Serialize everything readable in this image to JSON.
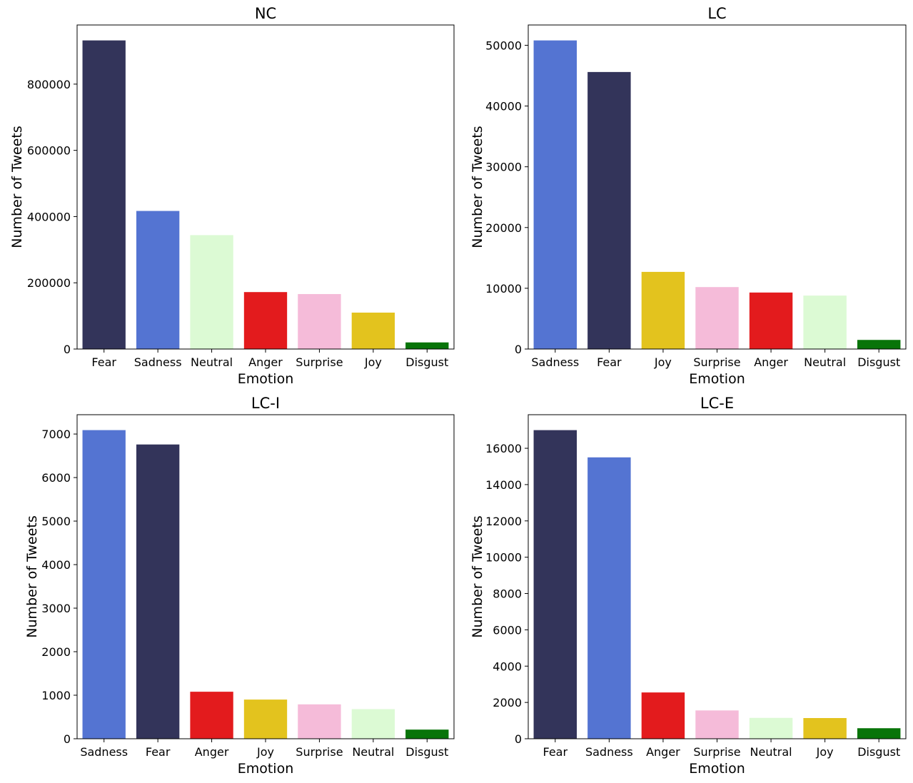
{
  "chart_data": [
    {
      "type": "bar",
      "title": "NC",
      "xlabel": "Emotion",
      "ylabel": "Number of Tweets",
      "categories": [
        "Fear",
        "Sadness",
        "Neutral",
        "Anger",
        "Surprise",
        "Joy",
        "Disgust"
      ],
      "values": [
        932000,
        417000,
        344000,
        172000,
        166000,
        110000,
        20000
      ],
      "colors": [
        "#33345a",
        "#5474d2",
        "#dcfad4",
        "#e31b1d",
        "#f5bbd9",
        "#e3c31e",
        "#087409"
      ],
      "ylim": [
        0,
        978600
      ],
      "yticks": [
        0,
        200000,
        400000,
        600000,
        800000
      ]
    },
    {
      "type": "bar",
      "title": "LC",
      "xlabel": "Emotion",
      "ylabel": "Number of Tweets",
      "categories": [
        "Sadness",
        "Fear",
        "Joy",
        "Surprise",
        "Anger",
        "Neutral",
        "Disgust"
      ],
      "values": [
        50800,
        45600,
        12700,
        10200,
        9300,
        8800,
        1500
      ],
      "colors": [
        "#5474d2",
        "#33345a",
        "#e3c31e",
        "#f5bbd9",
        "#e31b1d",
        "#dcfad4",
        "#087409"
      ],
      "ylim": [
        0,
        53340
      ],
      "yticks": [
        0,
        10000,
        20000,
        30000,
        40000,
        50000
      ]
    },
    {
      "type": "bar",
      "title": "LC-I",
      "xlabel": "Emotion",
      "ylabel": "Number of Tweets",
      "categories": [
        "Sadness",
        "Fear",
        "Anger",
        "Joy",
        "Surprise",
        "Neutral",
        "Disgust"
      ],
      "values": [
        7090,
        6760,
        1080,
        900,
        790,
        680,
        210
      ],
      "colors": [
        "#5474d2",
        "#33345a",
        "#e31b1d",
        "#e3c31e",
        "#f5bbd9",
        "#dcfad4",
        "#087409"
      ],
      "ylim": [
        0,
        7444
      ],
      "yticks": [
        0,
        1000,
        2000,
        3000,
        4000,
        5000,
        6000,
        7000
      ]
    },
    {
      "type": "bar",
      "title": "LC-E",
      "xlabel": "Emotion",
      "ylabel": "Number of Tweets",
      "categories": [
        "Fear",
        "Sadness",
        "Anger",
        "Surprise",
        "Neutral",
        "Joy",
        "Disgust"
      ],
      "values": [
        17000,
        15500,
        2550,
        1560,
        1150,
        1140,
        580
      ],
      "colors": [
        "#33345a",
        "#5474d2",
        "#e31b1d",
        "#f5bbd9",
        "#dcfad4",
        "#e3c31e",
        "#087409"
      ],
      "ylim": [
        0,
        17850
      ],
      "yticks": [
        0,
        2000,
        4000,
        6000,
        8000,
        10000,
        12000,
        14000,
        16000
      ]
    }
  ]
}
